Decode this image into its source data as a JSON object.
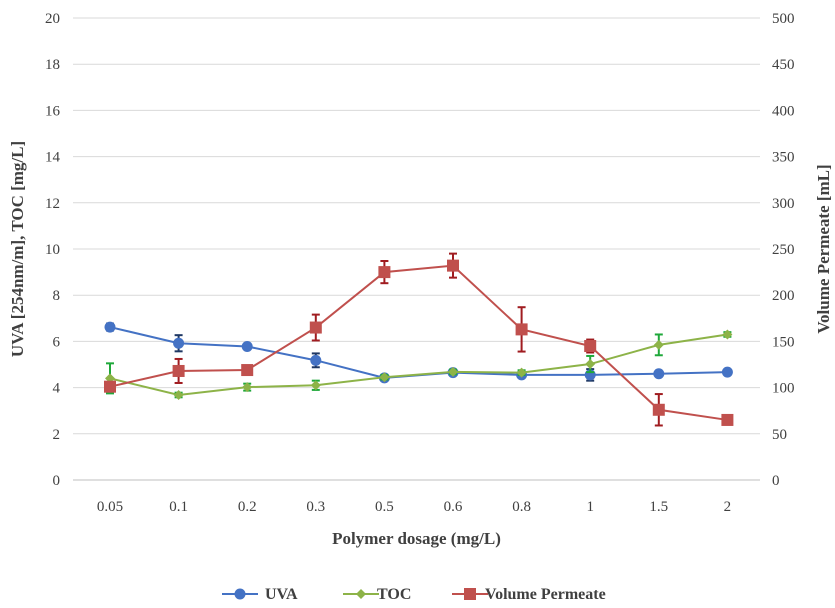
{
  "chart_data": {
    "type": "line",
    "title": "",
    "xlabel": "Polymer dosage (mg/L)",
    "ylabel": "UVA [254nm/m], TOC [mg/L]",
    "y2label": "Volume Permeate [mL]",
    "categories": [
      "0.05",
      "0.1",
      "0.2",
      "0.3",
      "0.5",
      "0.6",
      "0.8",
      "1",
      "1.5",
      "2"
    ],
    "ylim": [
      0,
      20
    ],
    "y_ticks": [
      "0",
      "2",
      "4",
      "6",
      "8",
      "10",
      "12",
      "14",
      "16",
      "18",
      "20"
    ],
    "y2lim": [
      0,
      500
    ],
    "y2_ticks": [
      "0",
      "50",
      "100",
      "150",
      "200",
      "250",
      "300",
      "350",
      "400",
      "450",
      "500"
    ],
    "grid": true,
    "legend_position": "bottom",
    "series": [
      {
        "name": "UVA",
        "axis": "left",
        "color": "#4472C4",
        "marker": "circle",
        "values": [
          6.62,
          5.92,
          5.78,
          5.18,
          4.42,
          4.65,
          4.55,
          4.55,
          4.6,
          4.67
        ],
        "error": [
          0.15,
          0.35,
          0.1,
          0.3,
          0.05,
          0.1,
          0.05,
          0.25,
          0.05,
          0.05
        ],
        "error_color": "#1F3864"
      },
      {
        "name": "TOC",
        "axis": "left",
        "color": "#8DB348",
        "marker": "diamond",
        "values": [
          4.4,
          3.68,
          4.02,
          4.1,
          4.45,
          4.68,
          4.65,
          5.02,
          5.85,
          6.3
        ],
        "error": [
          0.65,
          0.1,
          0.15,
          0.2,
          0.1,
          0.1,
          0.1,
          0.35,
          0.45,
          0.1
        ],
        "error_color": "#1FA83A"
      },
      {
        "name": "Volume Permeate",
        "axis": "right",
        "color": "#C0504D",
        "marker": "square",
        "values": [
          101,
          118,
          119,
          165,
          225,
          232,
          163,
          145,
          76,
          65
        ],
        "error": [
          5,
          13,
          2,
          14,
          12,
          13,
          24,
          7,
          17,
          5
        ],
        "error_color": "#A01C20"
      }
    ]
  }
}
